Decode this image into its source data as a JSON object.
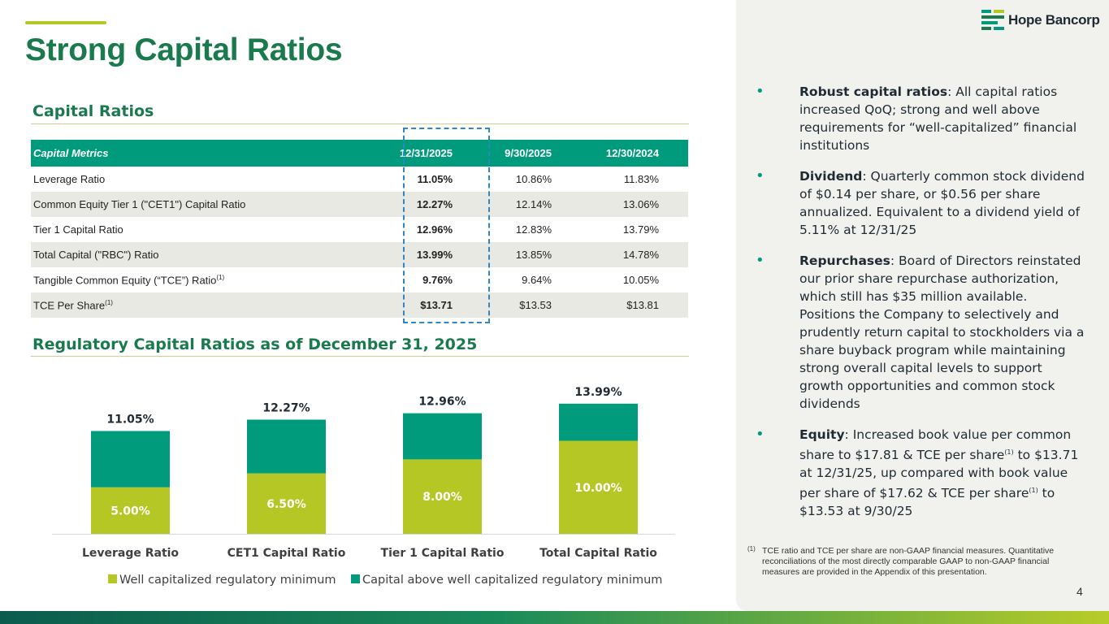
{
  "header": {
    "title": "Strong Capital Ratios",
    "logo_text": "Hope Bancorp"
  },
  "colors": {
    "brand_green": "#1a7a4e",
    "teal": "#009b7d",
    "lime": "#b5c724",
    "highlight_border": "#2e86c8"
  },
  "table_section": {
    "title": "Capital Ratios",
    "headers": [
      "Capital Metrics",
      "12/31/2025",
      "9/30/2025",
      "12/30/2024"
    ],
    "rows": [
      {
        "label": "Leverage Ratio",
        "sup": "",
        "v1": "11.05%",
        "v2": "10.86%",
        "v3": "11.83%"
      },
      {
        "label": "Common Equity Tier 1 (\"CET1\") Capital Ratio",
        "sup": "",
        "v1": "12.27%",
        "v2": "12.14%",
        "v3": "13.06%"
      },
      {
        "label": "Tier 1 Capital Ratio",
        "sup": "",
        "v1": "12.96%",
        "v2": "12.83%",
        "v3": "13.79%"
      },
      {
        "label": "Total Capital (\"RBC\") Ratio",
        "sup": "",
        "v1": "13.99%",
        "v2": "13.85%",
        "v3": "14.78%"
      },
      {
        "label": "Tangible Common Equity (“TCE”) Ratio",
        "sup": "(1)",
        "v1": "9.76%",
        "v2": "9.64%",
        "v3": "10.05%"
      },
      {
        "label": "TCE Per Share",
        "sup": "(1)",
        "v1": "$13.71",
        "v2": "$13.53",
        "v3": "$13.81"
      }
    ]
  },
  "chart_section": {
    "title": "Regulatory Capital Ratios as of December 31, 2025"
  },
  "chart_data": {
    "type": "bar",
    "stacked": true,
    "title": "Regulatory Capital Ratios as of December 31, 2025",
    "categories": [
      "Leverage Ratio",
      "CET1 Capital Ratio",
      "Tier 1 Capital Ratio",
      "Total Capital Ratio"
    ],
    "series": [
      {
        "name": "Well capitalized regulatory minimum",
        "color": "#b5c724",
        "values": [
          5.0,
          6.5,
          8.0,
          10.0
        ],
        "labels": [
          "5.00%",
          "6.50%",
          "8.00%",
          "10.00%"
        ]
      },
      {
        "name": "Capital above well capitalized regulatory minimum",
        "color": "#009b7d",
        "values": [
          6.05,
          5.77,
          4.96,
          3.99
        ]
      }
    ],
    "totals": [
      11.05,
      12.27,
      12.96,
      13.99
    ],
    "total_labels": [
      "11.05%",
      "12.27%",
      "12.96%",
      "13.99%"
    ],
    "ylim": [
      0,
      14
    ],
    "legend_position": "bottom"
  },
  "bullets": [
    {
      "bold": "Robust capital ratios",
      "parts": [
        ": All capital ratios increased QoQ; strong and well above requirements for “well-capitalized” financial institutions"
      ]
    },
    {
      "bold": "Dividend",
      "parts": [
        ": Quarterly common stock dividend of $0.14 per share, or $0.56 per share annualized. Equivalent to a dividend yield of 5.11% at 12/31/25"
      ]
    },
    {
      "bold": "Repurchases",
      "parts": [
        ": Board of Directors reinstated our prior share repurchase authorization, which still has $35 million available. Positions the Company to selectively and prudently return capital to stockholders via a share buyback program while maintaining strong overall capital levels to support growth opportunities and common stock dividends"
      ]
    },
    {
      "bold": "Equity",
      "parts": [
        ": Increased book value per common share to $17.81 & TCE per share",
        "(1)",
        " to $13.71 at 12/31/25, up compared with book value per share of $17.62 & TCE per share",
        "(1)",
        " to $13.53 at 9/30/25"
      ]
    }
  ],
  "footnote": {
    "mark": "(1)",
    "text": "TCE ratio and TCE per share are non-GAAP financial measures. Quantitative reconciliations of the most directly comparable GAAP to non-GAAP financial measures are provided in the Appendix of this presentation."
  },
  "page_number": "4"
}
